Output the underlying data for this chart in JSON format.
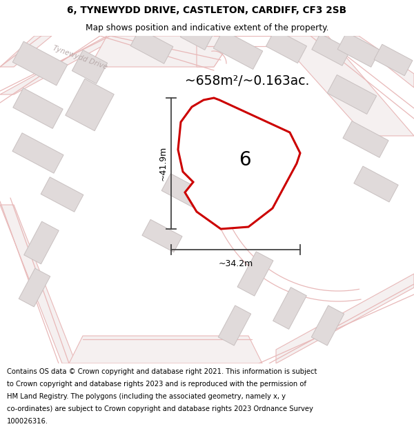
{
  "title_line1": "6, TYNEWYDD DRIVE, CASTLETON, CARDIFF, CF3 2SB",
  "title_line2": "Map shows position and indicative extent of the property.",
  "area_label": "~658m²/~0.163ac.",
  "width_label": "~34.2m",
  "height_label": "~41.9m",
  "plot_number": "6",
  "map_bg": "#f5f2f2",
  "road_outline_color": "#e8b8b8",
  "building_fill": "#e0dada",
  "building_edge": "#c8c0c0",
  "plot_fill": "#ffffff",
  "plot_edge": "#cc0000",
  "dim_line_color": "#444444",
  "road_label": "Tynewydd Drive",
  "footer_lines": [
    "Contains OS data © Crown copyright and database right 2021. This information is subject",
    "to Crown copyright and database rights 2023 and is reproduced with the permission of",
    "HM Land Registry. The polygons (including the associated geometry, namely x, y",
    "co-ordinates) are subject to Crown copyright and database rights 2023 Ordnance Survey",
    "100026316."
  ]
}
